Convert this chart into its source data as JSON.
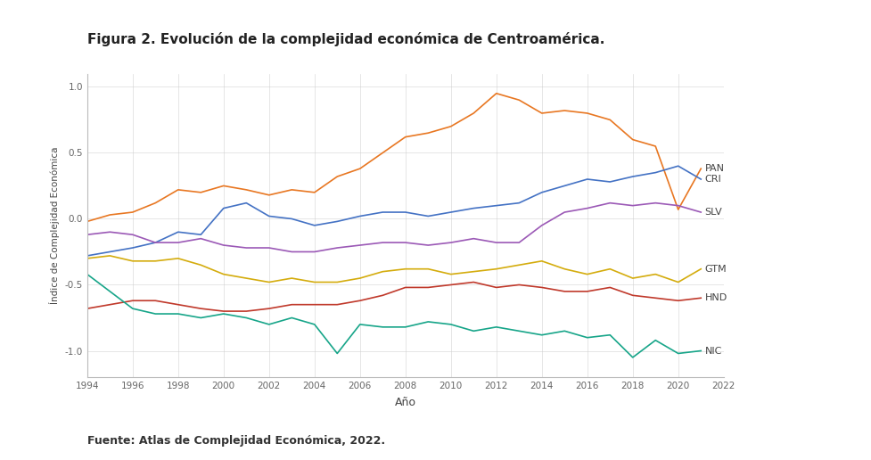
{
  "title": "Figura 2. Evolución de la complejidad económica de Centroamérica.",
  "xlabel": "Año",
  "ylabel": "Índice de Complejidad Económica",
  "source": "Fuente: Atlas de Complejidad Económica, 2022.",
  "years": [
    1994,
    1995,
    1996,
    1997,
    1998,
    1999,
    2000,
    2001,
    2002,
    2003,
    2004,
    2005,
    2006,
    2007,
    2008,
    2009,
    2010,
    2011,
    2012,
    2013,
    2014,
    2015,
    2016,
    2017,
    2018,
    2019,
    2020,
    2021
  ],
  "series": {
    "PAN": {
      "color": "#E87722",
      "values": [
        -0.02,
        0.03,
        0.05,
        0.12,
        0.22,
        0.2,
        0.25,
        0.22,
        0.18,
        0.22,
        0.2,
        0.32,
        0.38,
        0.5,
        0.62,
        0.65,
        0.7,
        0.8,
        0.95,
        0.9,
        0.8,
        0.82,
        0.8,
        0.75,
        0.6,
        0.55,
        0.07,
        0.38
      ]
    },
    "CRI": {
      "color": "#4472C4",
      "values": [
        -0.28,
        -0.25,
        -0.22,
        -0.18,
        -0.1,
        -0.12,
        0.08,
        0.12,
        0.02,
        0.0,
        -0.05,
        -0.02,
        0.02,
        0.05,
        0.05,
        0.02,
        0.05,
        0.08,
        0.1,
        0.12,
        0.2,
        0.25,
        0.3,
        0.28,
        0.32,
        0.35,
        0.4,
        0.3
      ]
    },
    "SLV": {
      "color": "#9B59B6",
      "values": [
        -0.12,
        -0.1,
        -0.12,
        -0.18,
        -0.18,
        -0.15,
        -0.2,
        -0.22,
        -0.22,
        -0.25,
        -0.25,
        -0.22,
        -0.2,
        -0.18,
        -0.18,
        -0.2,
        -0.18,
        -0.15,
        -0.18,
        -0.18,
        -0.05,
        0.05,
        0.08,
        0.12,
        0.1,
        0.12,
        0.1,
        0.05
      ]
    },
    "GTM": {
      "color": "#D4AC0D",
      "values": [
        -0.3,
        -0.28,
        -0.32,
        -0.32,
        -0.3,
        -0.35,
        -0.42,
        -0.45,
        -0.48,
        -0.45,
        -0.48,
        -0.48,
        -0.45,
        -0.4,
        -0.38,
        -0.38,
        -0.42,
        -0.4,
        -0.38,
        -0.35,
        -0.32,
        -0.38,
        -0.42,
        -0.38,
        -0.45,
        -0.42,
        -0.48,
        -0.38
      ]
    },
    "HND": {
      "color": "#C0392B",
      "values": [
        -0.68,
        -0.65,
        -0.62,
        -0.62,
        -0.65,
        -0.68,
        -0.7,
        -0.7,
        -0.68,
        -0.65,
        -0.65,
        -0.65,
        -0.62,
        -0.58,
        -0.52,
        -0.52,
        -0.5,
        -0.48,
        -0.52,
        -0.5,
        -0.52,
        -0.55,
        -0.55,
        -0.52,
        -0.58,
        -0.6,
        -0.62,
        -0.6
      ]
    },
    "NIC": {
      "color": "#17A589",
      "values": [
        -0.42,
        -0.55,
        -0.68,
        -0.72,
        -0.72,
        -0.75,
        -0.72,
        -0.75,
        -0.8,
        -0.75,
        -0.8,
        -1.02,
        -0.8,
        -0.82,
        -0.82,
        -0.78,
        -0.8,
        -0.85,
        -0.82,
        -0.85,
        -0.88,
        -0.85,
        -0.9,
        -0.88,
        -1.05,
        -0.92,
        -1.02,
        -1.0
      ]
    }
  },
  "xlim": [
    1994,
    2022
  ],
  "ylim": [
    -1.2,
    1.1
  ],
  "xticks": [
    1994,
    1996,
    1998,
    2000,
    2002,
    2004,
    2006,
    2008,
    2010,
    2012,
    2014,
    2016,
    2018,
    2020,
    2022
  ],
  "yticks": [
    -1.0,
    -0.5,
    0.0,
    0.5,
    1.0
  ],
  "background_color": "#FFFFFF",
  "grid_color": "#CCCCCC",
  "title_fontsize": 11,
  "label_fontsize": 8,
  "tick_fontsize": 7.5,
  "source_fontsize": 9
}
